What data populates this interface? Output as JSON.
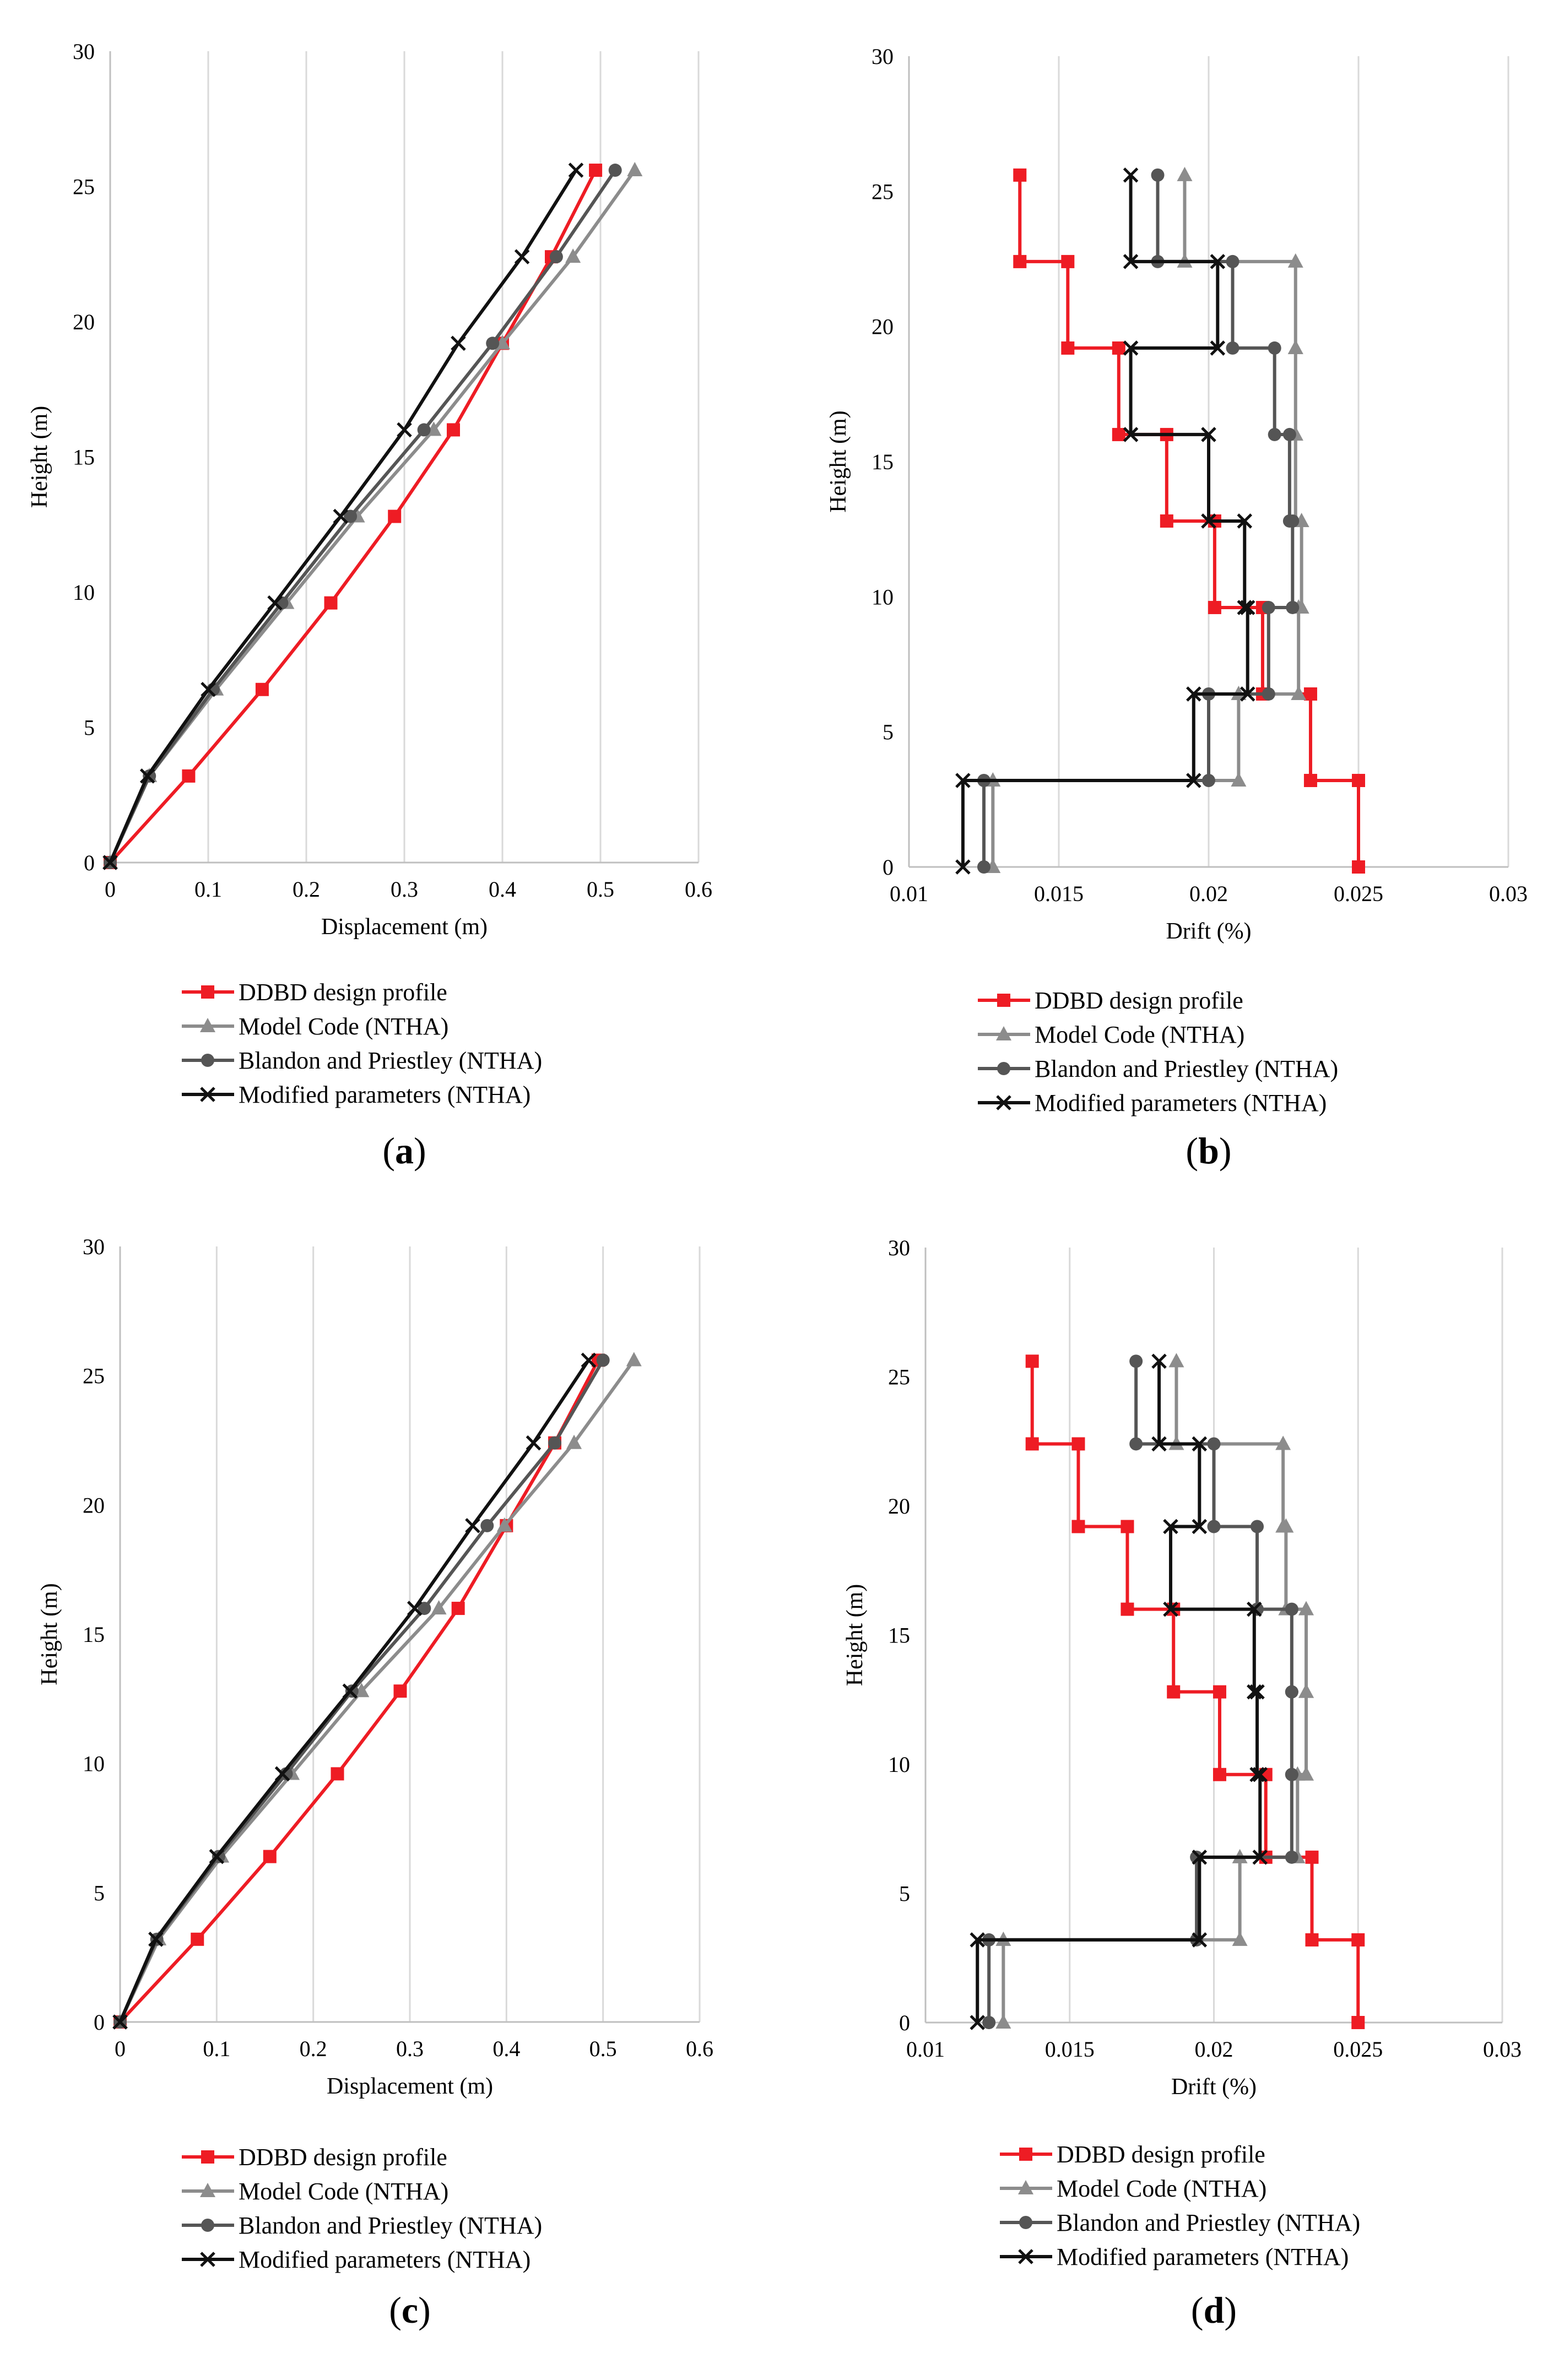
{
  "colors": {
    "ddbd": "#ee1c24",
    "model_code": "#8c8c8c",
    "blandon": "#555555",
    "modified": "#111111",
    "grid": "#d9d9d9",
    "axis": "#bfbfbf"
  },
  "legend": [
    {
      "label": "DDBD design profile",
      "marker": "square",
      "color_key": "ddbd"
    },
    {
      "label": "Model Code (NTHA)",
      "marker": "triangle",
      "color_key": "model_code"
    },
    {
      "label": "Blandon and Priestley (NTHA)",
      "marker": "circle",
      "color_key": "blandon"
    },
    {
      "label": "Modified parameters (NTHA)",
      "marker": "x",
      "color_key": "modified"
    }
  ],
  "panels": [
    {
      "id": "a",
      "label": "(a)"
    },
    {
      "id": "b",
      "label": "(b)"
    },
    {
      "id": "c",
      "label": "(c)"
    },
    {
      "id": "d",
      "label": "(d)"
    }
  ],
  "chart_data": [
    {
      "panel": "a",
      "type": "line",
      "xlabel": "Displacement (m)",
      "ylabel": "Height (m)",
      "xlim": [
        0,
        0.6
      ],
      "ylim": [
        0,
        30
      ],
      "xticks": [
        "0",
        "0.1",
        "0.2",
        "0.3",
        "0.4",
        "0.5",
        "0.6"
      ],
      "yticks": [
        "0",
        "5",
        "10",
        "15",
        "20",
        "25",
        "30"
      ],
      "grid": "vertical",
      "series": [
        {
          "name": "DDBD design profile",
          "x": [
            0,
            0.08,
            0.155,
            0.225,
            0.29,
            0.35,
            0.4,
            0.45,
            0.495
          ],
          "y": [
            0,
            3.2,
            6.4,
            9.6,
            12.8,
            16.0,
            19.2,
            22.4,
            25.6
          ]
        },
        {
          "name": "Model Code (NTHA)",
          "x": [
            0,
            0.04,
            0.108,
            0.18,
            0.252,
            0.33,
            0.4,
            0.472,
            0.535
          ],
          "y": [
            0,
            3.2,
            6.4,
            9.6,
            12.8,
            16.0,
            19.2,
            22.4,
            25.6
          ]
        },
        {
          "name": "Blandon and Priestley (NTHA)",
          "x": [
            0,
            0.04,
            0.105,
            0.175,
            0.245,
            0.32,
            0.39,
            0.455,
            0.515
          ],
          "y": [
            0,
            3.2,
            6.4,
            9.6,
            12.8,
            16.0,
            19.2,
            22.4,
            25.6
          ]
        },
        {
          "name": "Modified parameters (NTHA)",
          "x": [
            0,
            0.038,
            0.1,
            0.168,
            0.235,
            0.3,
            0.355,
            0.42,
            0.475
          ],
          "y": [
            0,
            3.2,
            6.4,
            9.6,
            12.8,
            16.0,
            19.2,
            22.4,
            25.6
          ]
        }
      ]
    },
    {
      "panel": "b",
      "type": "line",
      "xlabel": "Drift (%)",
      "ylabel": "Height (m)",
      "xlim": [
        0.01,
        0.03
      ],
      "ylim": [
        0,
        30
      ],
      "xticks": [
        "0.01",
        "0.015",
        "0.02",
        "0.025",
        "0.03"
      ],
      "yticks": [
        "0",
        "5",
        "10",
        "15",
        "20",
        "25",
        "30"
      ],
      "grid": "vertical",
      "series": [
        {
          "name": "DDBD design profile",
          "x": [
            0.025,
            0.025,
            0.0234,
            0.0234,
            0.0218,
            0.0218,
            0.0202,
            0.0202,
            0.0186,
            0.0186,
            0.017,
            0.017,
            0.0153,
            0.0153,
            0.0137,
            0.0137
          ],
          "y": [
            0,
            3.2,
            3.2,
            6.4,
            6.4,
            9.6,
            9.6,
            12.8,
            12.8,
            16.0,
            16.0,
            19.2,
            19.2,
            22.4,
            22.4,
            25.6
          ]
        },
        {
          "name": "Model Code (NTHA)",
          "x": [
            0.0128,
            0.0128,
            0.021,
            0.021,
            0.023,
            0.023,
            0.0231,
            0.0231,
            0.0229,
            0.0229,
            0.0229,
            0.0229,
            0.0229,
            0.0229,
            0.0192,
            0.0192
          ],
          "y": [
            0,
            3.2,
            3.2,
            6.4,
            6.4,
            9.6,
            9.6,
            12.8,
            12.8,
            16.0,
            16.0,
            19.2,
            19.2,
            22.4,
            22.4,
            25.6
          ]
        },
        {
          "name": "Blandon and Priestley (NTHA)",
          "x": [
            0.0125,
            0.0125,
            0.02,
            0.02,
            0.022,
            0.022,
            0.0228,
            0.0228,
            0.0227,
            0.0227,
            0.0222,
            0.0222,
            0.0208,
            0.0208,
            0.0183,
            0.0183
          ],
          "y": [
            0,
            3.2,
            3.2,
            6.4,
            6.4,
            9.6,
            9.6,
            12.8,
            12.8,
            16.0,
            16.0,
            19.2,
            19.2,
            22.4,
            22.4,
            25.6
          ]
        },
        {
          "name": "Modified parameters (NTHA)",
          "x": [
            0.0118,
            0.0118,
            0.0195,
            0.0195,
            0.0213,
            0.0213,
            0.0212,
            0.0212,
            0.02,
            0.02,
            0.0174,
            0.0174,
            0.0203,
            0.0203,
            0.0174,
            0.0174
          ],
          "y": [
            0,
            3.2,
            3.2,
            6.4,
            6.4,
            9.6,
            9.6,
            12.8,
            12.8,
            16.0,
            16.0,
            19.2,
            19.2,
            22.4,
            22.4,
            25.6
          ]
        }
      ]
    },
    {
      "panel": "c",
      "type": "line",
      "xlabel": "Displacement (m)",
      "ylabel": "Height (m)",
      "xlim": [
        0,
        0.6
      ],
      "ylim": [
        0,
        30
      ],
      "xticks": [
        "0",
        "0.1",
        "0.2",
        "0.3",
        "0.4",
        "0.5",
        "0.6"
      ],
      "yticks": [
        "0",
        "5",
        "10",
        "15",
        "20",
        "25",
        "30"
      ],
      "grid": "vertical",
      "series": [
        {
          "name": "DDBD design profile",
          "x": [
            0,
            0.08,
            0.155,
            0.225,
            0.29,
            0.35,
            0.4,
            0.45,
            0.495
          ],
          "y": [
            0,
            3.2,
            6.4,
            9.6,
            12.8,
            16.0,
            19.2,
            22.4,
            25.6
          ]
        },
        {
          "name": "Model Code (NTHA)",
          "x": [
            0,
            0.04,
            0.105,
            0.178,
            0.25,
            0.33,
            0.398,
            0.47,
            0.532
          ],
          "y": [
            0,
            3.2,
            6.4,
            9.6,
            12.8,
            16.0,
            19.2,
            22.4,
            25.6
          ]
        },
        {
          "name": "Blandon and Priestley (NTHA)",
          "x": [
            0,
            0.038,
            0.102,
            0.172,
            0.24,
            0.315,
            0.38,
            0.45,
            0.5
          ],
          "y": [
            0,
            3.2,
            6.4,
            9.6,
            12.8,
            16.0,
            19.2,
            22.4,
            25.6
          ]
        },
        {
          "name": "Modified parameters (NTHA)",
          "x": [
            0,
            0.037,
            0.1,
            0.168,
            0.238,
            0.305,
            0.365,
            0.428,
            0.485
          ],
          "y": [
            0,
            3.2,
            6.4,
            9.6,
            12.8,
            16.0,
            19.2,
            22.4,
            25.6
          ]
        }
      ]
    },
    {
      "panel": "d",
      "type": "line",
      "xlabel": "Drift (%)",
      "ylabel": "Height (m)",
      "xlim": [
        0.01,
        0.03
      ],
      "ylim": [
        0,
        30
      ],
      "xticks": [
        "0.01",
        "0.015",
        "0.02",
        "0.025",
        "0.03"
      ],
      "yticks": [
        "0",
        "5",
        "10",
        "15",
        "20",
        "25",
        "30"
      ],
      "grid": "vertical",
      "series": [
        {
          "name": "DDBD design profile",
          "x": [
            0.025,
            0.025,
            0.0234,
            0.0234,
            0.0218,
            0.0218,
            0.0202,
            0.0202,
            0.0186,
            0.0186,
            0.017,
            0.017,
            0.0153,
            0.0153,
            0.0137,
            0.0137
          ],
          "y": [
            0,
            3.2,
            3.2,
            6.4,
            6.4,
            9.6,
            9.6,
            12.8,
            12.8,
            16.0,
            16.0,
            19.2,
            19.2,
            22.4,
            22.4,
            25.6
          ]
        },
        {
          "name": "Model Code (NTHA)",
          "x": [
            0.0127,
            0.0127,
            0.0209,
            0.0209,
            0.0229,
            0.0229,
            0.0232,
            0.0232,
            0.0232,
            0.0232,
            0.0225,
            0.0225,
            0.0224,
            0.0224,
            0.0187,
            0.0187
          ],
          "y": [
            0,
            3.2,
            3.2,
            6.4,
            6.4,
            9.6,
            9.6,
            12.8,
            12.8,
            16.0,
            16.0,
            19.2,
            19.2,
            22.4,
            22.4,
            25.6
          ]
        },
        {
          "name": "Blandon and Priestley (NTHA)",
          "x": [
            0.0122,
            0.0122,
            0.0194,
            0.0194,
            0.0227,
            0.0227,
            0.0227,
            0.0227,
            0.0227,
            0.0227,
            0.0215,
            0.0215,
            0.02,
            0.02,
            0.0173,
            0.0173
          ],
          "y": [
            0,
            3.2,
            3.2,
            6.4,
            6.4,
            9.6,
            9.6,
            12.8,
            12.8,
            16.0,
            16.0,
            19.2,
            19.2,
            22.4,
            22.4,
            25.6
          ]
        },
        {
          "name": "Modified parameters (NTHA)",
          "x": [
            0.0118,
            0.0118,
            0.0195,
            0.0195,
            0.0216,
            0.0216,
            0.0215,
            0.0215,
            0.0214,
            0.0214,
            0.0185,
            0.0185,
            0.0195,
            0.0195,
            0.0181,
            0.0181
          ],
          "y": [
            0,
            3.2,
            3.2,
            6.4,
            6.4,
            9.6,
            9.6,
            12.8,
            12.8,
            16.0,
            16.0,
            19.2,
            19.2,
            22.4,
            22.4,
            25.6
          ]
        }
      ]
    }
  ]
}
